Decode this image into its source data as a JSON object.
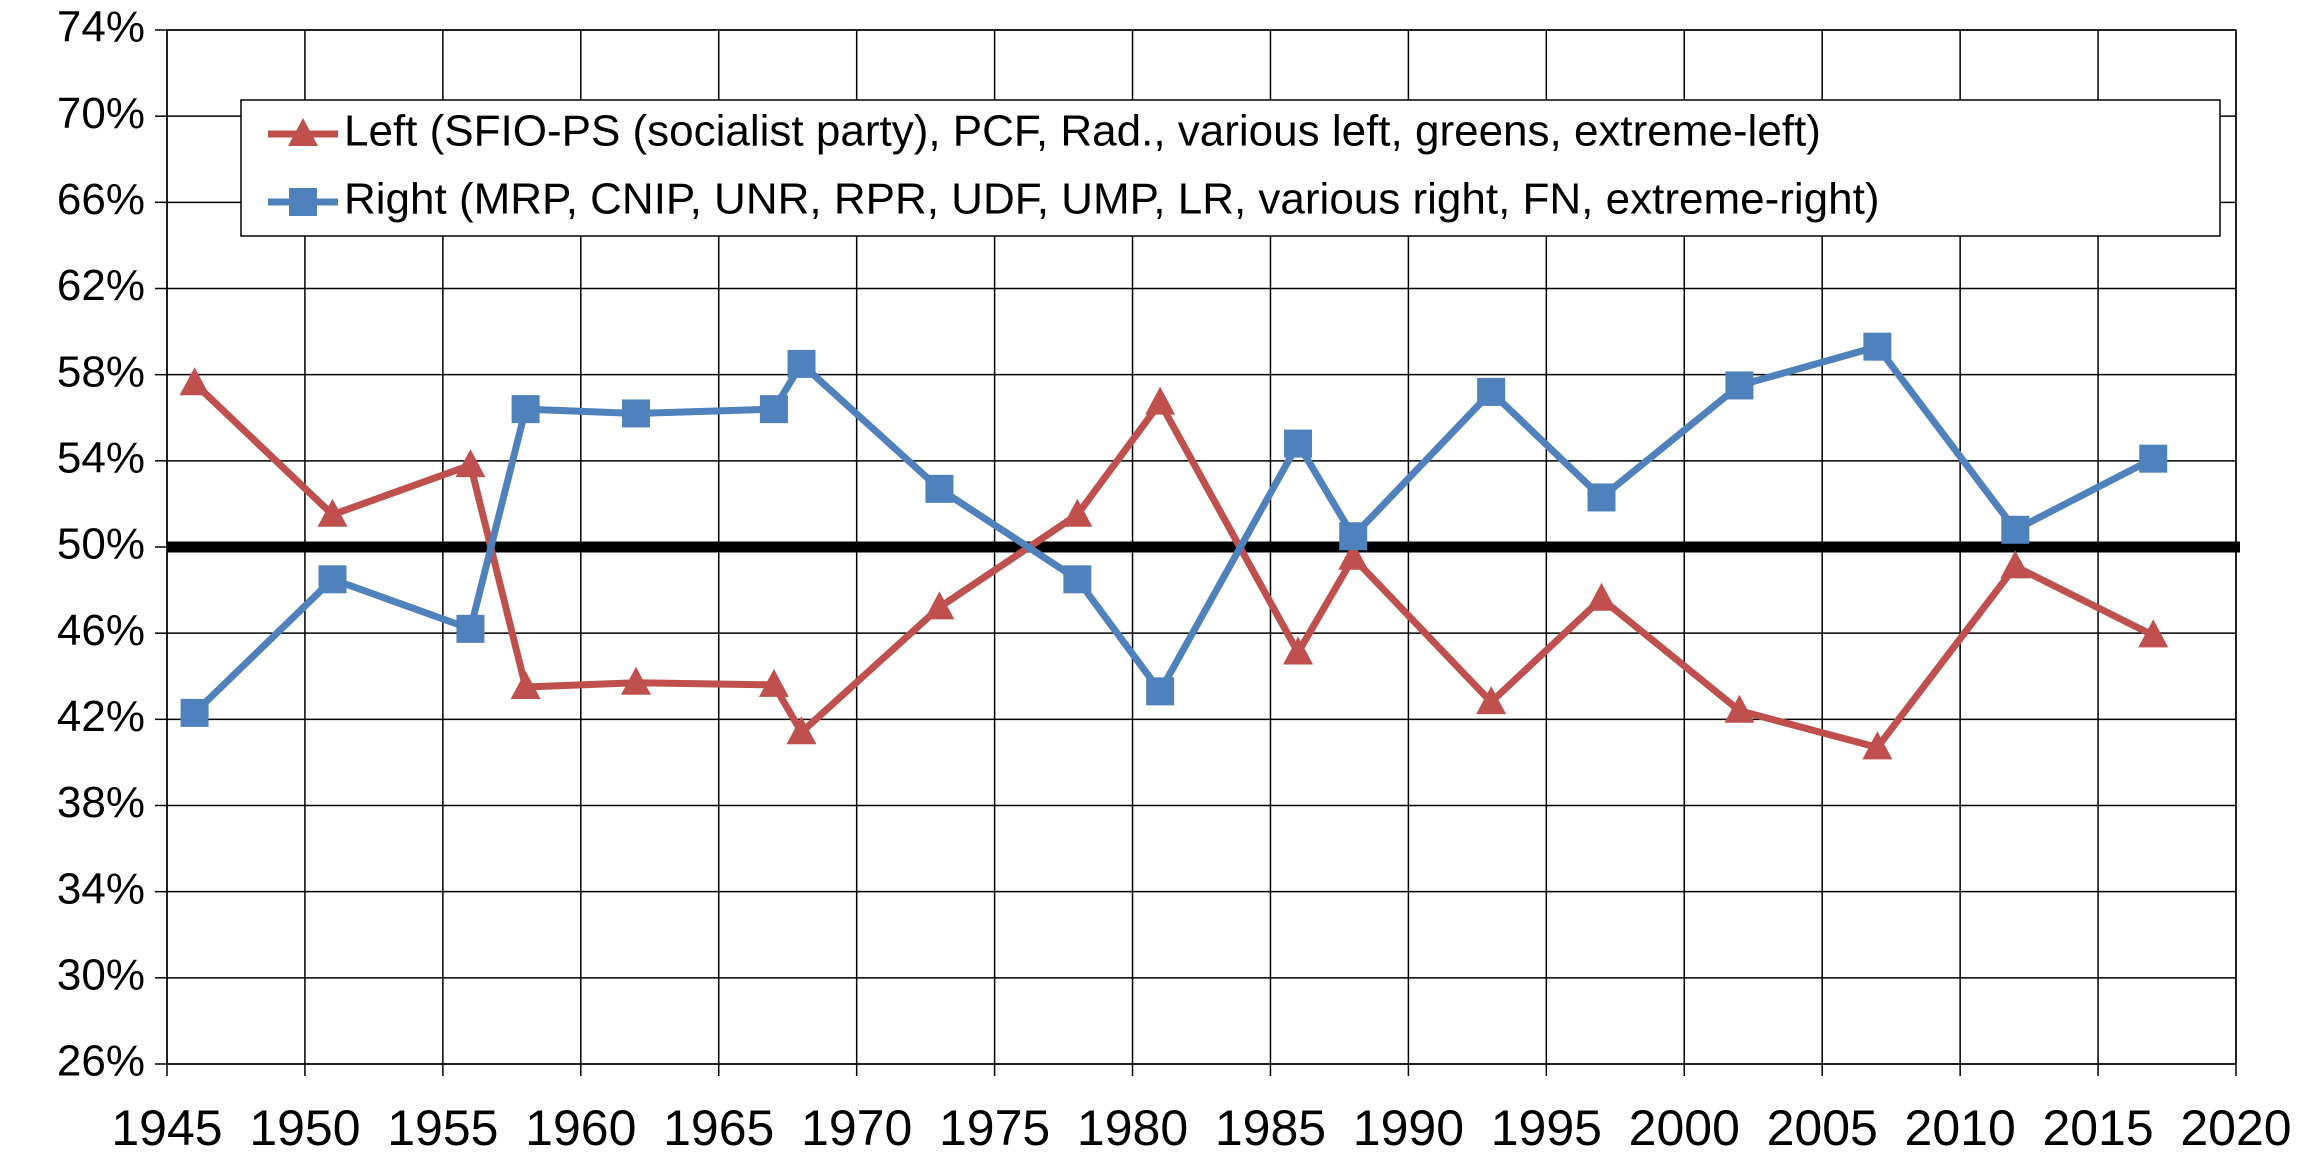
{
  "chart_data": {
    "type": "line",
    "x": [
      1946,
      1951,
      1956,
      1958,
      1962,
      1967,
      1968,
      1973,
      1978,
      1981,
      1986,
      1988,
      1993,
      1997,
      2002,
      2007,
      2012,
      2017
    ],
    "series": [
      {
        "name": "Left (SFIO-PS (socialist party), PCF, Rad., various left, greens, extreme-left)",
        "color": "#c0504d",
        "marker": "triangle",
        "values": [
          57.6,
          51.5,
          53.8,
          43.5,
          43.7,
          43.6,
          41.4,
          47.2,
          51.5,
          56.7,
          45.1,
          49.5,
          42.8,
          47.6,
          42.4,
          40.7,
          49.1,
          45.9
        ]
      },
      {
        "name": "Right (MRP, CNIP, UNR, RPR, UDF, UMP, LR, various right, FN, extreme-right)",
        "color": "#4f81bd",
        "marker": "square",
        "values": [
          42.3,
          48.5,
          46.2,
          56.4,
          56.2,
          56.4,
          58.5,
          52.7,
          48.5,
          43.3,
          54.8,
          50.5,
          57.2,
          52.3,
          57.5,
          59.3,
          50.8,
          54.1
        ]
      }
    ],
    "xlim": [
      1945,
      2020
    ],
    "xticks": [
      1945,
      1950,
      1955,
      1960,
      1965,
      1970,
      1975,
      1980,
      1985,
      1990,
      1995,
      2000,
      2005,
      2010,
      2015,
      2020
    ],
    "ylim": [
      26,
      74
    ],
    "yticks": [
      {
        "value": 26,
        "label": "26%"
      },
      {
        "value": 30,
        "label": "30%"
      },
      {
        "value": 34,
        "label": "34%"
      },
      {
        "value": 38,
        "label": "38%"
      },
      {
        "value": 42,
        "label": "42%"
      },
      {
        "value": 46,
        "label": "46%"
      },
      {
        "value": 50,
        "label": "50%"
      },
      {
        "value": 54,
        "label": "54%"
      },
      {
        "value": 58,
        "label": "58%"
      },
      {
        "value": 62,
        "label": "62%"
      },
      {
        "value": 66,
        "label": "66%"
      },
      {
        "value": 70,
        "label": "70%"
      },
      {
        "value": 74,
        "label": "74%"
      }
    ],
    "reference_line": 50,
    "grid": true,
    "legend": "top"
  }
}
